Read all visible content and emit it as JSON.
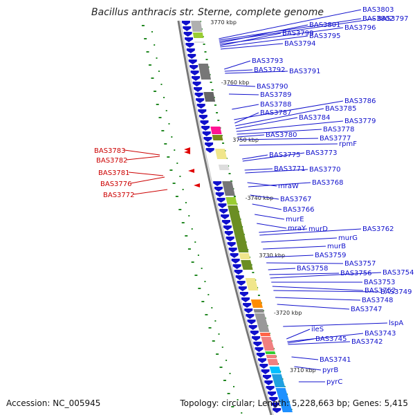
{
  "title": "Bacillus anthracis str. Sterne, complete genome",
  "footer": {
    "accession": "Accession: NC_005945",
    "topology": "Topology: circular; Length: 5,228,663 bp; Genes: 5,415"
  },
  "colors": {
    "gene_right": "#1010cc",
    "gene_left": "#e00000",
    "label_blue": "#1010cc",
    "label_red": "#cc0000",
    "backbone": "#888888",
    "dots": "#228822"
  },
  "kbp_ticks": [
    {
      "label": "3770 kbp"
    },
    {
      "label": "-3760 kbp"
    },
    {
      "label": "3750 kbp"
    },
    {
      "label": "-3740 kbp"
    },
    {
      "label": "3730 kbp"
    },
    {
      "label": "-3720 kbp"
    },
    {
      "label": "3710 kbp"
    }
  ],
  "genes_right": [
    {
      "name": "BAS3803"
    },
    {
      "name": "BAS3802"
    },
    {
      "name": "BAS3797"
    },
    {
      "name": "BAS3801"
    },
    {
      "name": "BAS3796"
    },
    {
      "name": "BAS3799"
    },
    {
      "name": "BAS3795"
    },
    {
      "name": "BAS3794"
    },
    {
      "name": "BAS3793"
    },
    {
      "name": "BAS3792"
    },
    {
      "name": "BAS3791"
    },
    {
      "name": "BAS3790"
    },
    {
      "name": "BAS3789"
    },
    {
      "name": "BAS3788"
    },
    {
      "name": "BAS3786"
    },
    {
      "name": "BAS3787"
    },
    {
      "name": "BAS3785"
    },
    {
      "name": "BAS3784"
    },
    {
      "name": "BAS3779"
    },
    {
      "name": "BAS3778"
    },
    {
      "name": "BAS3780"
    },
    {
      "name": "BAS3777"
    },
    {
      "name": "rpmF"
    },
    {
      "name": "BAS3775"
    },
    {
      "name": "BAS3773"
    },
    {
      "name": "BAS3771"
    },
    {
      "name": "BAS3770"
    },
    {
      "name": "mraW"
    },
    {
      "name": "BAS3768"
    },
    {
      "name": "BAS3767"
    },
    {
      "name": "BAS3766"
    },
    {
      "name": "murE"
    },
    {
      "name": "mraY"
    },
    {
      "name": "murD"
    },
    {
      "name": "BAS3762"
    },
    {
      "name": "murG"
    },
    {
      "name": "murB"
    },
    {
      "name": "BAS3759"
    },
    {
      "name": "BAS3757"
    },
    {
      "name": "BAS3758"
    },
    {
      "name": "BAS3756"
    },
    {
      "name": "BAS3754"
    },
    {
      "name": "BAS3753"
    },
    {
      "name": "BAS3752"
    },
    {
      "name": "BAS3749"
    },
    {
      "name": "BAS3748"
    },
    {
      "name": "BAS3747"
    },
    {
      "name": "lspA"
    },
    {
      "name": "ileS"
    },
    {
      "name": "BAS3743"
    },
    {
      "name": "BAS3745"
    },
    {
      "name": "BAS3742"
    },
    {
      "name": "BAS3741"
    },
    {
      "name": "pyrB"
    },
    {
      "name": "pyrC"
    }
  ],
  "genes_left": [
    {
      "name": "BAS3783"
    },
    {
      "name": "BAS3782"
    },
    {
      "name": "BAS3781"
    },
    {
      "name": "BAS3776"
    },
    {
      "name": "BAS3772"
    }
  ]
}
